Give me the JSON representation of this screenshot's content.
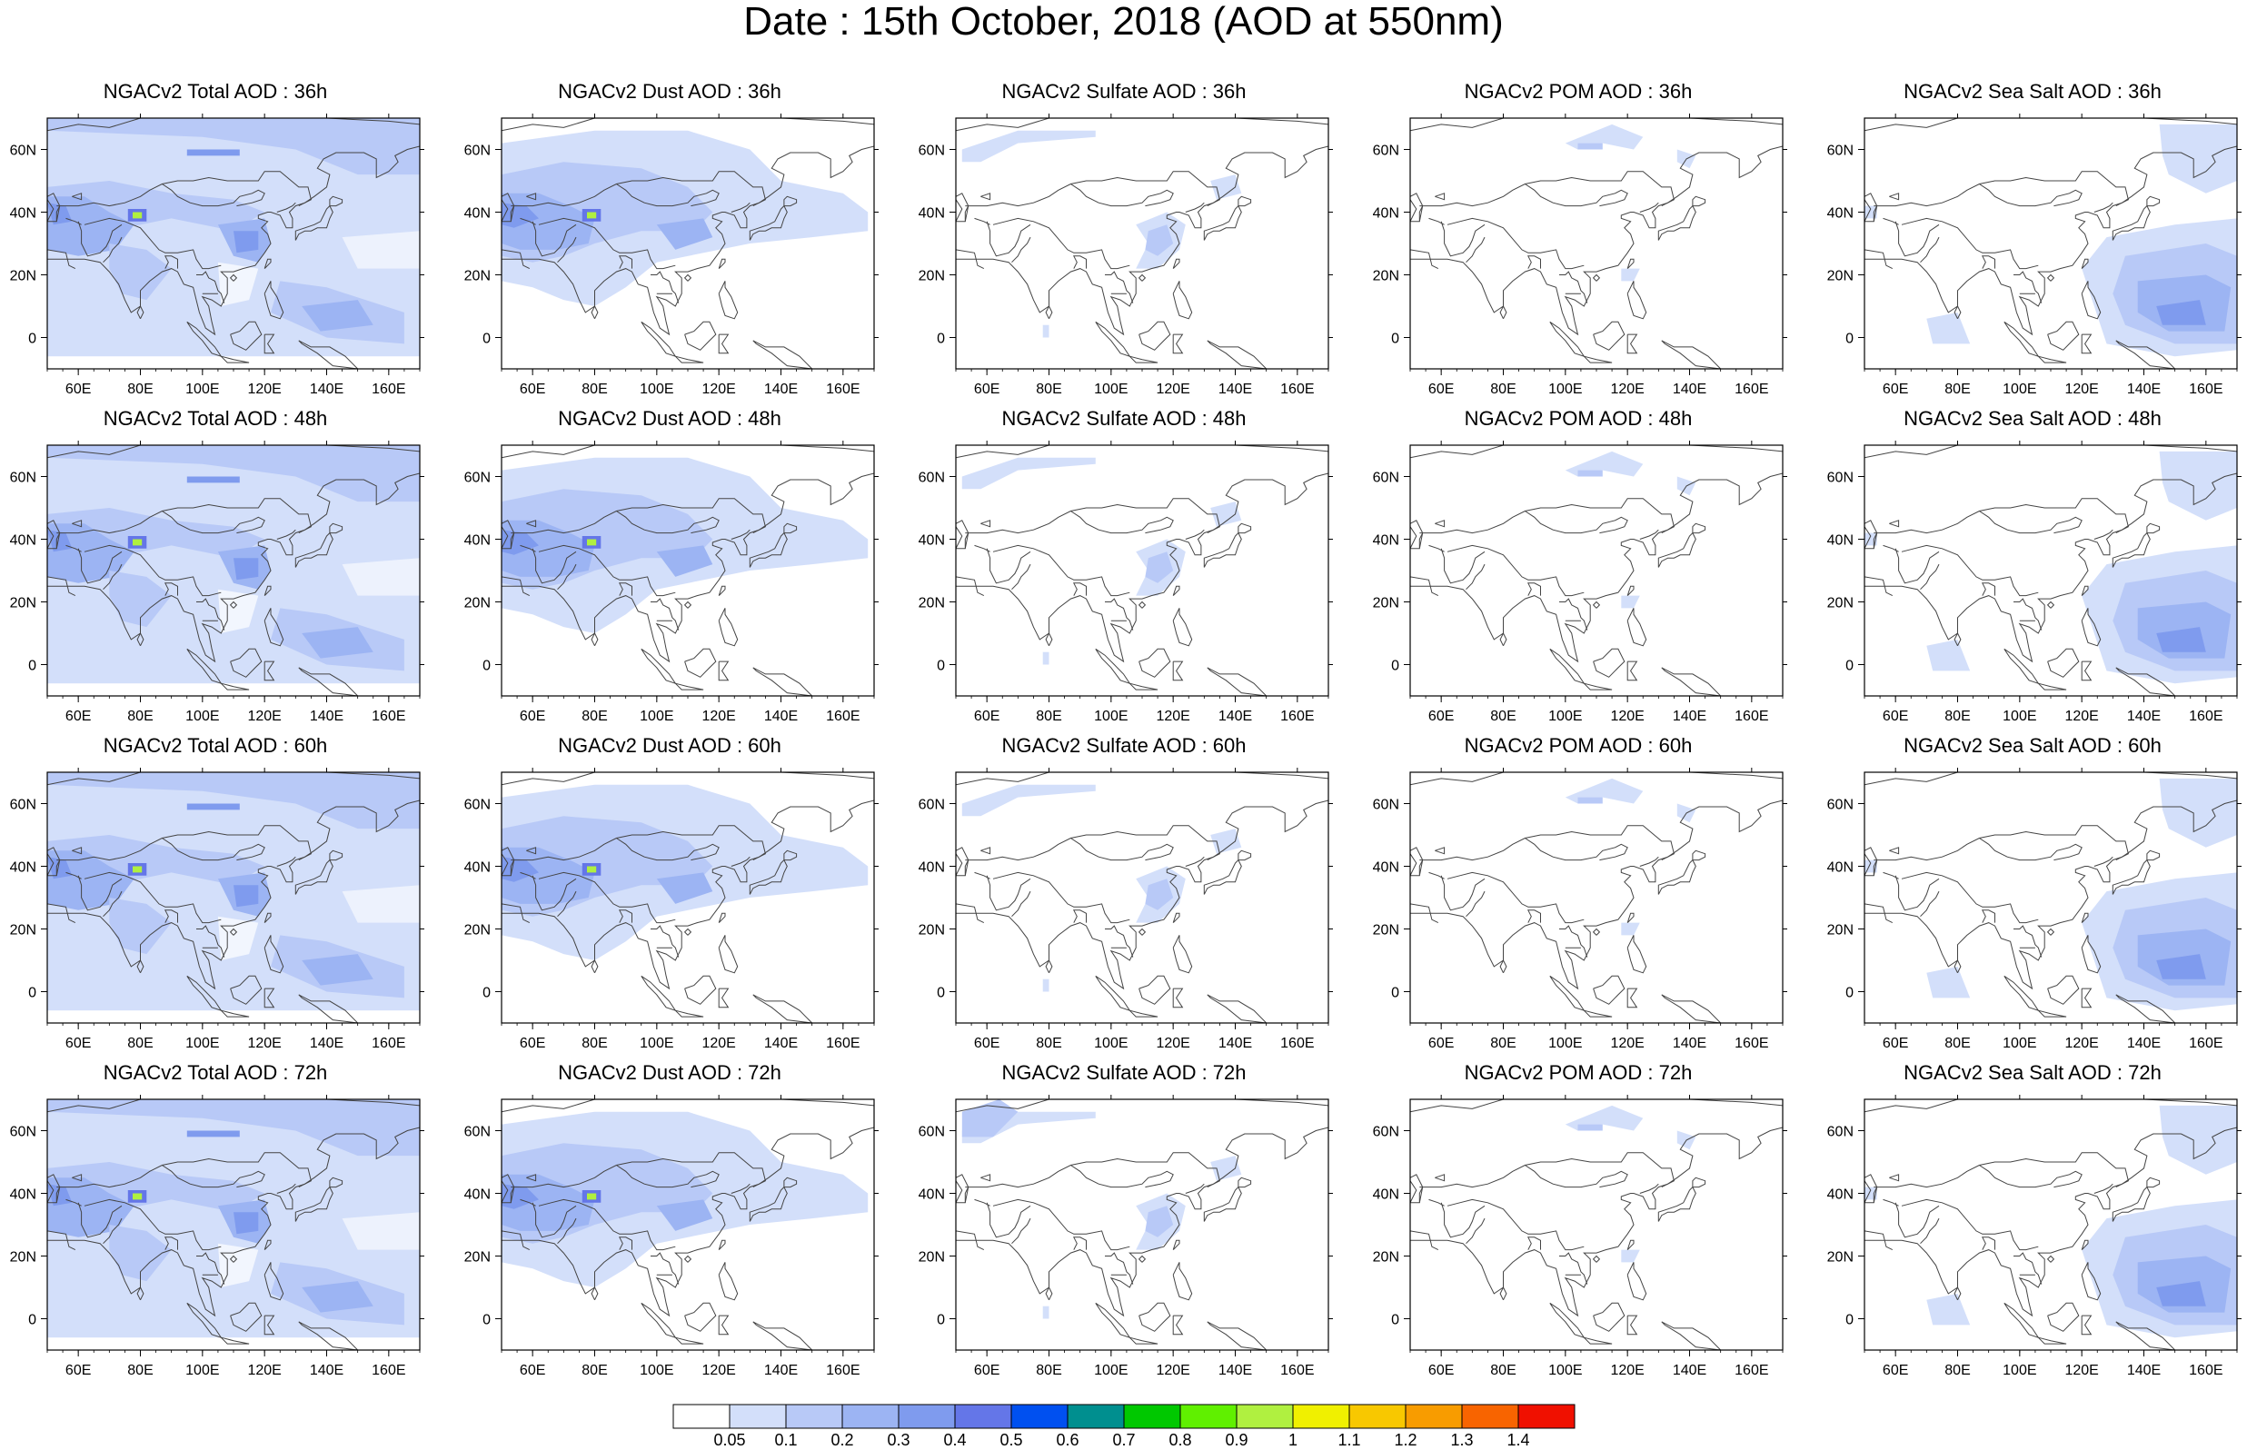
{
  "title": "Date : 15th October, 2018 (AOD at 550nm)",
  "axes": {
    "lon_ticks": [
      "60E",
      "80E",
      "100E",
      "120E",
      "140E",
      "160E"
    ],
    "lon_values": [
      60,
      80,
      100,
      120,
      140,
      160
    ],
    "lat_ticks": [
      "60N",
      "40N",
      "20N",
      "0"
    ],
    "lat_values": [
      60,
      40,
      20,
      0
    ],
    "lon_range": [
      50,
      170
    ],
    "lat_range": [
      -10,
      70
    ]
  },
  "colorbar": {
    "colors": [
      "#ffffff",
      "#d3dffa",
      "#b8c9f7",
      "#9cb4f3",
      "#7f9bee",
      "#6476e8",
      "#0050f0",
      "#008f8f",
      "#00c800",
      "#60f000",
      "#b0f040",
      "#f0f000",
      "#f8c800",
      "#f89c00",
      "#f86400",
      "#f01000"
    ],
    "labels": [
      "0.05",
      "0.1",
      "0.2",
      "0.3",
      "0.4",
      "0.5",
      "0.6",
      "0.7",
      "0.8",
      "0.9",
      "1",
      "1.1",
      "1.2",
      "1.3",
      "1.4"
    ]
  },
  "panels": [
    {
      "row": 0,
      "col": 0,
      "title": "NGACv2 Total AOD : 36h",
      "type": "total"
    },
    {
      "row": 0,
      "col": 1,
      "title": "NGACv2 Dust AOD : 36h",
      "type": "dust"
    },
    {
      "row": 0,
      "col": 2,
      "title": "NGACv2 Sulfate AOD : 36h",
      "type": "sulfate"
    },
    {
      "row": 0,
      "col": 3,
      "title": "NGACv2 POM AOD : 36h",
      "type": "pom"
    },
    {
      "row": 0,
      "col": 4,
      "title": "NGACv2 Sea Salt AOD : 36h",
      "type": "seasalt"
    },
    {
      "row": 1,
      "col": 0,
      "title": "NGACv2 Total AOD : 48h",
      "type": "total"
    },
    {
      "row": 1,
      "col": 1,
      "title": "NGACv2 Dust AOD : 48h",
      "type": "dust"
    },
    {
      "row": 1,
      "col": 2,
      "title": "NGACv2 Sulfate AOD : 48h",
      "type": "sulfate"
    },
    {
      "row": 1,
      "col": 3,
      "title": "NGACv2 POM AOD : 48h",
      "type": "pom"
    },
    {
      "row": 1,
      "col": 4,
      "title": "NGACv2 Sea Salt AOD : 48h",
      "type": "seasalt"
    },
    {
      "row": 2,
      "col": 0,
      "title": "NGACv2 Total AOD : 60h",
      "type": "total"
    },
    {
      "row": 2,
      "col": 1,
      "title": "NGACv2 Dust AOD : 60h",
      "type": "dust"
    },
    {
      "row": 2,
      "col": 2,
      "title": "NGACv2 Sulfate AOD : 60h",
      "type": "sulfate"
    },
    {
      "row": 2,
      "col": 3,
      "title": "NGACv2 POM AOD : 60h",
      "type": "pom"
    },
    {
      "row": 2,
      "col": 4,
      "title": "NGACv2 Sea Salt AOD : 60h",
      "type": "seasalt"
    },
    {
      "row": 3,
      "col": 0,
      "title": "NGACv2 Total AOD : 72h",
      "type": "total"
    },
    {
      "row": 3,
      "col": 1,
      "title": "NGACv2 Dust AOD : 72h",
      "type": "dust"
    },
    {
      "row": 3,
      "col": 2,
      "title": "NGACv2 Sulfate AOD : 72h",
      "type": "sulfate"
    },
    {
      "row": 3,
      "col": 3,
      "title": "NGACv2 POM AOD : 72h",
      "type": "pom"
    },
    {
      "row": 3,
      "col": 4,
      "title": "NGACv2 Sea Salt  AOD : 72h",
      "type": "seasalt"
    }
  ]
}
